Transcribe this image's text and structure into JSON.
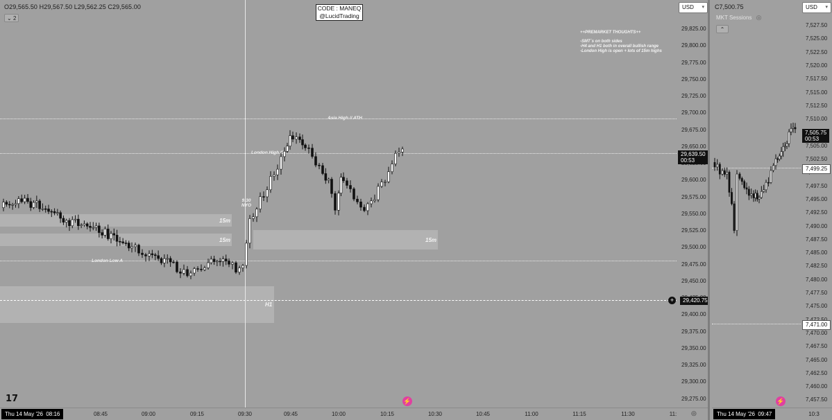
{
  "left_chart": {
    "ohlc": "O29,565.50 H29,567.50 L29,562.25 C29,565.00",
    "collapse_label": "2",
    "currency": "USD",
    "code_box": {
      "line1": "CODE : MANEQ",
      "line2": "@LucidTrading"
    },
    "premarket_notes": {
      "title": "++PREMARKET THOUGHTS++",
      "lines": [
        "-SMT`s on both sides",
        "-H4 and H1 both in overall bullish range",
        "-London High is open + lots of 15m highs"
      ]
    },
    "annotations": {
      "asia_high": "Asia High // ATH",
      "london_high": "London High O",
      "london_low": "London Low A",
      "nyo": "9:30 NYO"
    },
    "zone_labels": {
      "z1": "15m",
      "z2": "15m",
      "z3": "15m",
      "h1": "H1"
    },
    "y_ticks": [
      "29,825.00",
      "29,800.00",
      "29,775.00",
      "29,750.00",
      "29,725.00",
      "29,700.00",
      "29,675.00",
      "29,650.00",
      "29,625.00",
      "29,600.00",
      "29,575.00",
      "29,550.00",
      "29,525.00",
      "29,500.00",
      "29,475.00",
      "29,450.00",
      "29,425.00",
      "29,400.00",
      "29,375.00",
      "29,350.00",
      "29,325.00",
      "29,300.00",
      "29,275.00"
    ],
    "last_price": "29,639.50",
    "countdown": "00:53",
    "cursor_price": "29,420.75",
    "date_badge": "Thu 14 May '26",
    "date_badge_time": "08:16",
    "x_ticks": [
      "08:45",
      "09:00",
      "09:15",
      "09:30",
      "09:45",
      "10:00",
      "10:15",
      "10:30",
      "10:45",
      "11:00",
      "11:15",
      "11:30",
      "11:"
    ]
  },
  "right_chart": {
    "title": "C7,500.75",
    "currency": "USD",
    "indicator": "MKT Sessions",
    "y_ticks": [
      "7,527.50",
      "7,525.00",
      "7,522.50",
      "7,520.00",
      "7,517.50",
      "7,515.00",
      "7,512.50",
      "7,510.00",
      "7,507.50",
      "7,505.00",
      "7,502.50",
      "7,500.00",
      "7,497.50",
      "7,495.00",
      "7,492.50",
      "7,490.00",
      "7,487.50",
      "7,485.00",
      "7,482.50",
      "7,480.00",
      "7,477.50",
      "7,475.00",
      "7,472.50",
      "7,470.00",
      "7,467.50",
      "7,465.00",
      "7,462.50",
      "7,460.00",
      "7,457.50"
    ],
    "last_price": "7,505.75",
    "countdown": "00:53",
    "level_1": "7,499.25",
    "level_2": "7,471.00",
    "date_badge": "Thu 14 May '26",
    "date_badge_time": "09:47",
    "x_ticks": [
      "10:3"
    ]
  },
  "colors": {
    "background": "#a0a0a0",
    "candle_up": "#ffffff",
    "candle_down": "#111111",
    "zone": "#b8b8b8"
  }
}
